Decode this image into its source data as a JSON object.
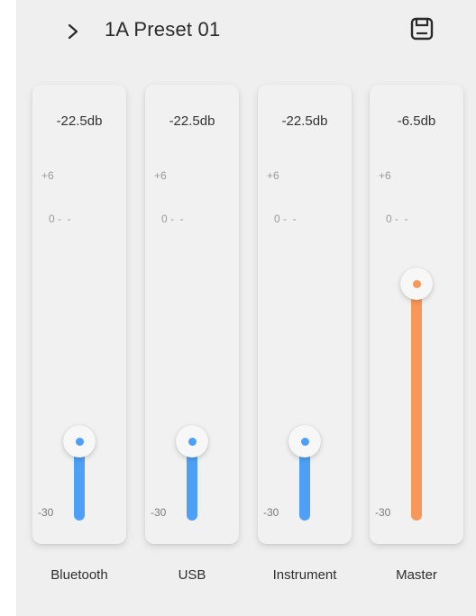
{
  "header": {
    "preset_title": "1A Preset 01",
    "expand_icon": "chevron-right-icon",
    "save_icon": "save-icon"
  },
  "scale": {
    "top": "+6",
    "zero": "0 -  -",
    "bottom": "-30"
  },
  "colors": {
    "channel_accent": "#4da0f5",
    "master_accent": "#f8975a"
  },
  "channels": [
    {
      "label": "Bluetooth",
      "db": "-22.5db",
      "level": -22.5
    },
    {
      "label": "USB",
      "db": "-22.5db",
      "level": -22.5
    },
    {
      "label": "Instrument",
      "db": "-22.5db",
      "level": -22.5
    },
    {
      "label": "Master",
      "db": "-6.5db",
      "level": -6.5
    }
  ]
}
